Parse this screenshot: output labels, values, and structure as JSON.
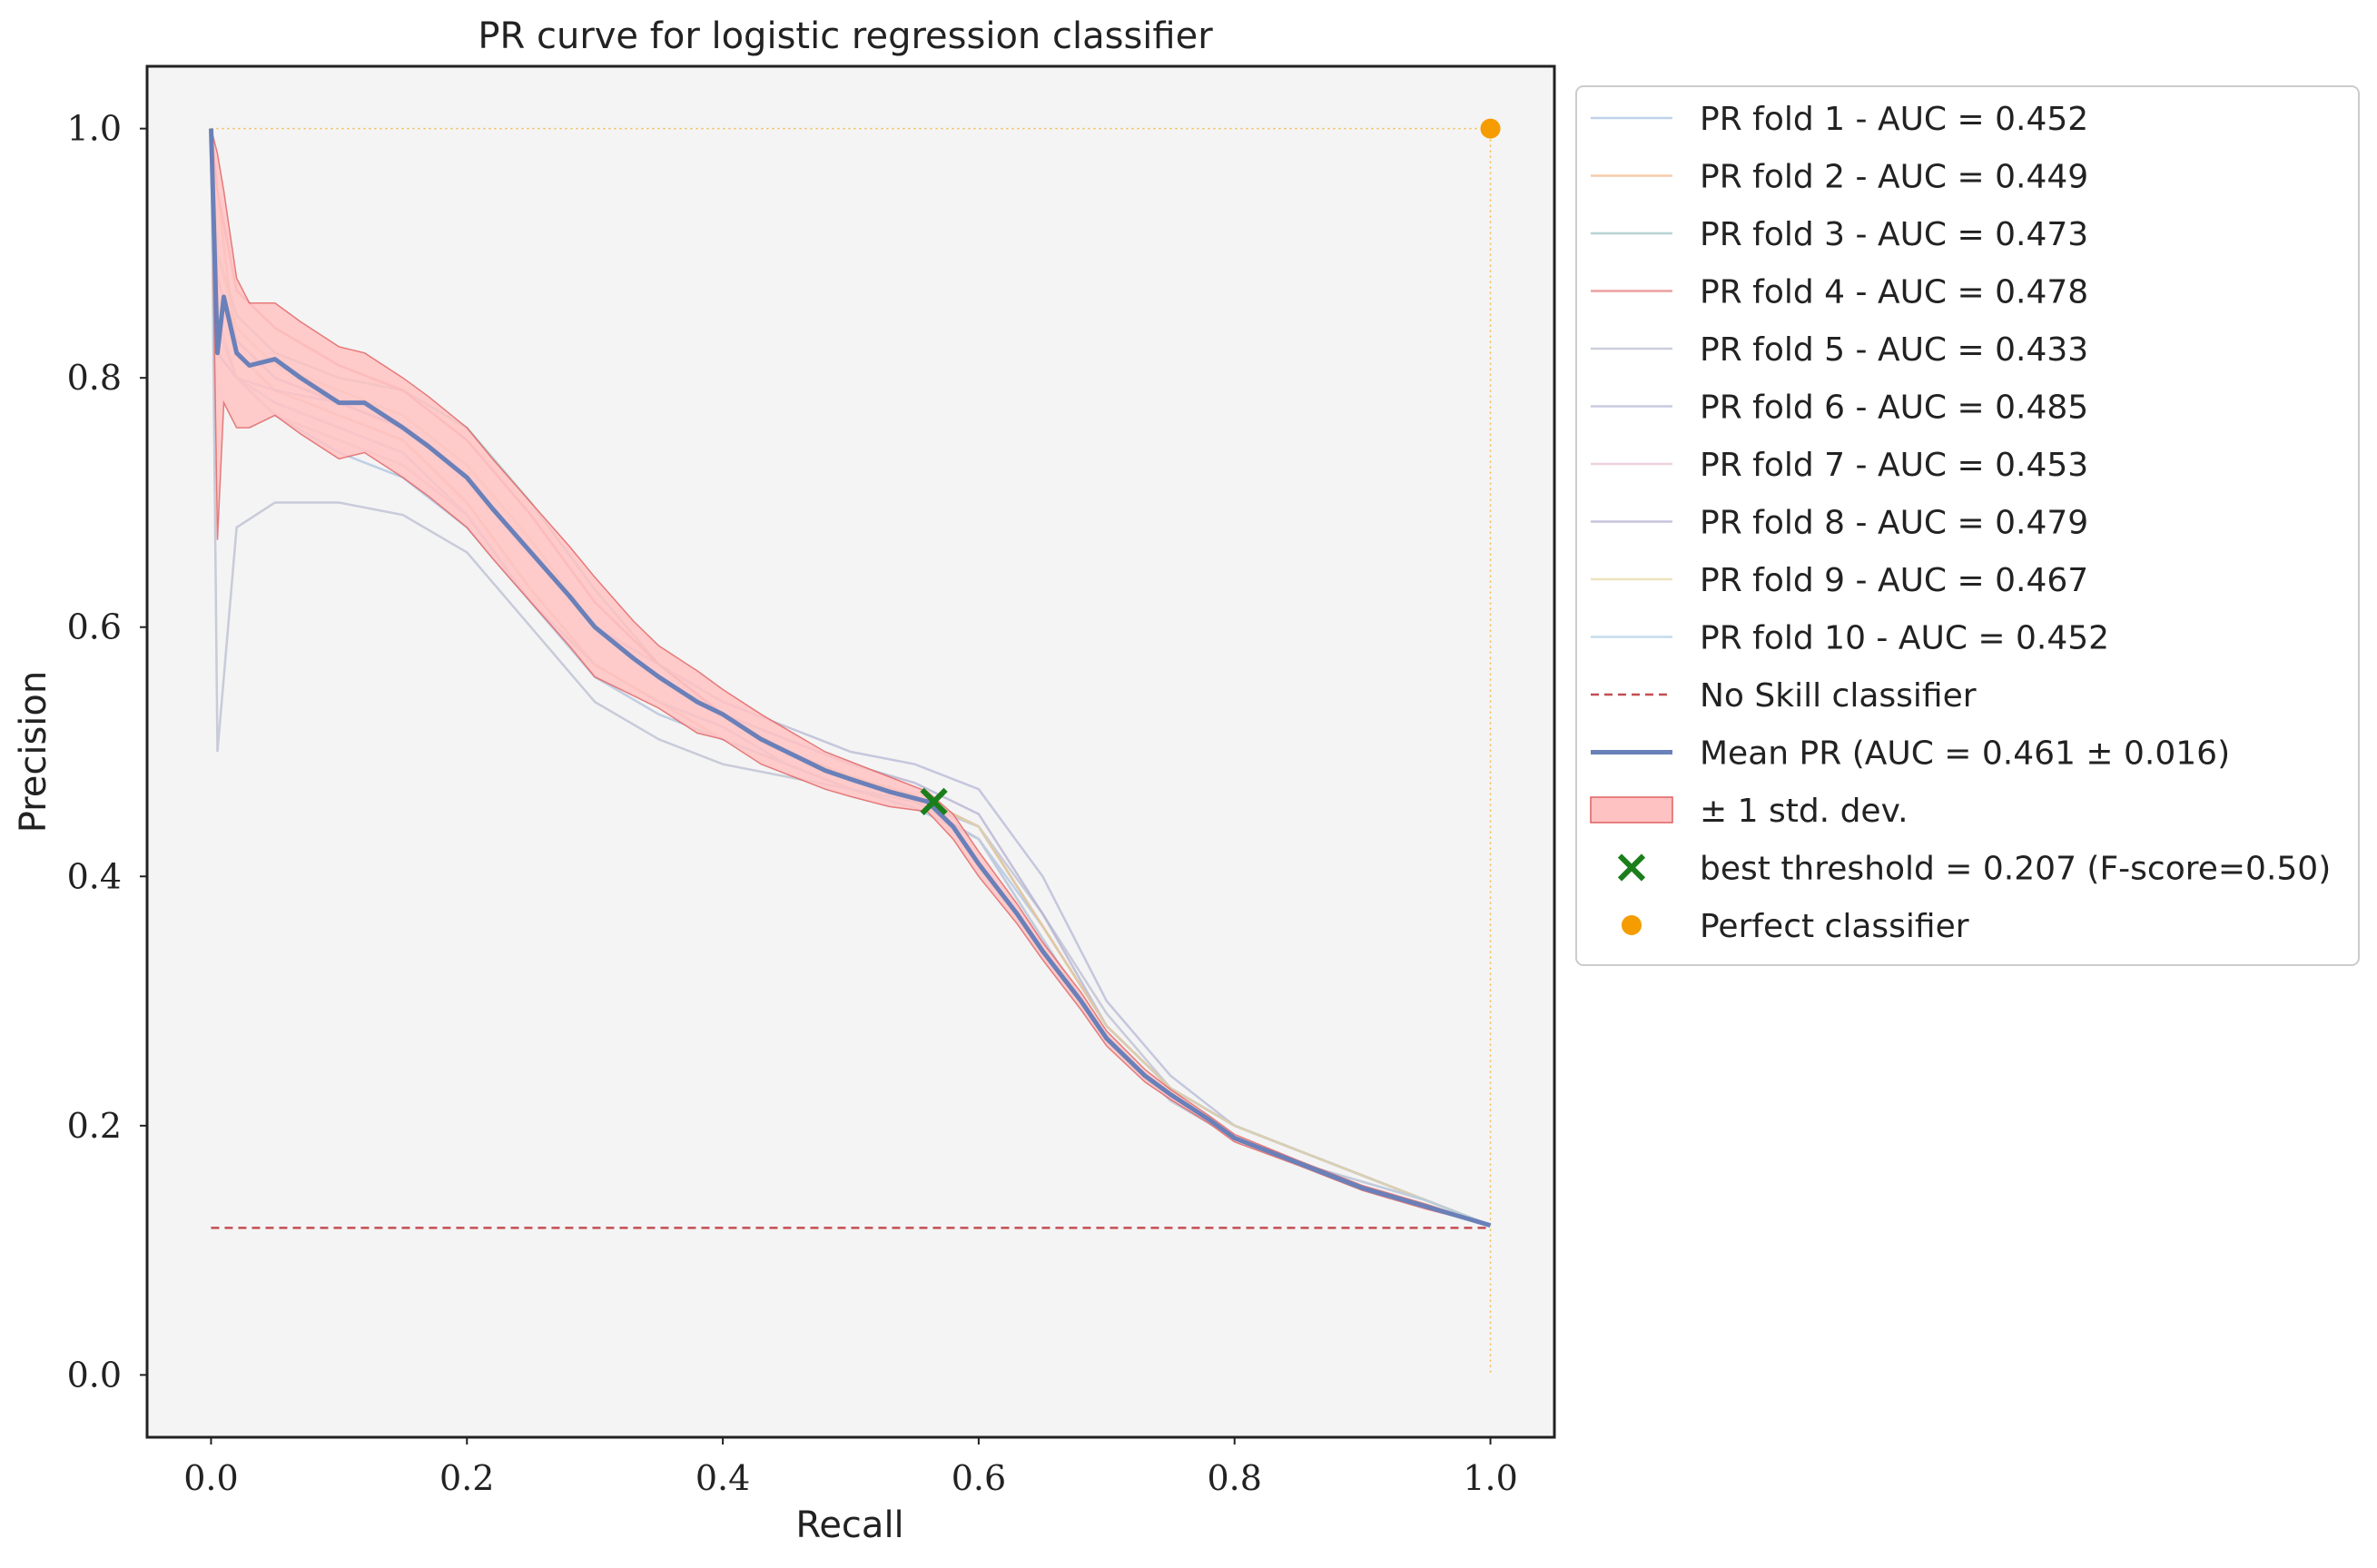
{
  "chart_data": {
    "type": "line",
    "title": "PR curve for logistic regression classifier",
    "xlabel": "Recall",
    "ylabel": "Precision",
    "xlim": [
      -0.05,
      1.05
    ],
    "ylim": [
      -0.05,
      1.05
    ],
    "xticks": [
      "0.0",
      "0.2",
      "0.4",
      "0.6",
      "0.8",
      "1.0"
    ],
    "yticks": [
      "0.0",
      "0.2",
      "0.4",
      "0.6",
      "0.8",
      "1.0"
    ],
    "grid": false,
    "legend_position": "outside-right",
    "colors": {
      "plot_bg": "#f4f4f4",
      "mean": "#6a80b9",
      "band_fill": "#ffc2c2",
      "band_edge": "#e06060",
      "no_skill": "#c44e52",
      "best": "#1a7f1a",
      "perfect": "#f59c00"
    },
    "series": [
      {
        "name": "PR fold 1 - AUC = 0.452",
        "color": "#a9c4e3",
        "x": [
          0.0,
          0.005,
          0.02,
          0.05,
          0.1,
          0.15,
          0.2,
          0.25,
          0.3,
          0.35,
          0.4,
          0.45,
          0.5,
          0.55,
          0.6,
          0.65,
          0.7,
          0.75,
          0.8,
          0.85,
          0.9,
          0.95,
          1.0
        ],
        "y": [
          1.0,
          0.82,
          0.8,
          0.77,
          0.74,
          0.72,
          0.68,
          0.62,
          0.57,
          0.54,
          0.52,
          0.49,
          0.47,
          0.455,
          0.43,
          0.36,
          0.28,
          0.23,
          0.2,
          0.18,
          0.16,
          0.14,
          0.12
        ]
      },
      {
        "name": "PR fold 2 - AUC = 0.449",
        "color": "#f2b98f",
        "x": [
          0.0,
          0.005,
          0.02,
          0.05,
          0.1,
          0.15,
          0.2,
          0.25,
          0.3,
          0.35,
          0.4,
          0.45,
          0.5,
          0.55,
          0.6,
          0.65,
          0.7,
          0.75,
          0.8,
          0.85,
          0.9,
          0.95,
          1.0
        ],
        "y": [
          1.0,
          0.95,
          0.82,
          0.79,
          0.77,
          0.75,
          0.7,
          0.63,
          0.57,
          0.54,
          0.51,
          0.49,
          0.47,
          0.46,
          0.43,
          0.35,
          0.27,
          0.22,
          0.19,
          0.17,
          0.155,
          0.14,
          0.12
        ]
      },
      {
        "name": "PR fold 3 - AUC = 0.473",
        "color": "#9fc6c2",
        "x": [
          0.0,
          0.005,
          0.02,
          0.05,
          0.1,
          0.15,
          0.2,
          0.25,
          0.3,
          0.35,
          0.4,
          0.45,
          0.5,
          0.55,
          0.6,
          0.65,
          0.7,
          0.75,
          0.8,
          0.85,
          0.9,
          0.95,
          1.0
        ],
        "y": [
          1.0,
          0.9,
          0.85,
          0.82,
          0.8,
          0.79,
          0.76,
          0.7,
          0.63,
          0.57,
          0.53,
          0.5,
          0.48,
          0.465,
          0.44,
          0.36,
          0.28,
          0.23,
          0.2,
          0.18,
          0.16,
          0.14,
          0.12
        ]
      },
      {
        "name": "PR fold 4 - AUC = 0.478",
        "color": "#e68080",
        "x": [
          0.0,
          0.005,
          0.02,
          0.05,
          0.1,
          0.15,
          0.2,
          0.25,
          0.3,
          0.35,
          0.4,
          0.45,
          0.5,
          0.55,
          0.6,
          0.65,
          0.7,
          0.75,
          0.8,
          0.85,
          0.9,
          0.95,
          1.0
        ],
        "y": [
          1.0,
          0.95,
          0.87,
          0.84,
          0.81,
          0.79,
          0.75,
          0.69,
          0.62,
          0.57,
          0.53,
          0.5,
          0.48,
          0.465,
          0.44,
          0.36,
          0.28,
          0.23,
          0.2,
          0.18,
          0.16,
          0.14,
          0.12
        ]
      },
      {
        "name": "PR fold 5 - AUC = 0.433",
        "color": "#b9bdd0",
        "x": [
          0.0,
          0.005,
          0.02,
          0.05,
          0.1,
          0.15,
          0.2,
          0.25,
          0.3,
          0.35,
          0.4,
          0.45,
          0.5,
          0.55,
          0.6,
          0.65,
          0.7,
          0.75,
          0.8,
          0.85,
          0.9,
          0.95,
          1.0
        ],
        "y": [
          1.0,
          0.5,
          0.68,
          0.7,
          0.7,
          0.69,
          0.66,
          0.6,
          0.54,
          0.51,
          0.49,
          0.48,
          0.47,
          0.46,
          0.44,
          0.37,
          0.29,
          0.23,
          0.2,
          0.18,
          0.16,
          0.14,
          0.12
        ]
      },
      {
        "name": "PR fold 6 - AUC = 0.485",
        "color": "#b5b8d6",
        "x": [
          0.0,
          0.005,
          0.02,
          0.05,
          0.1,
          0.15,
          0.2,
          0.25,
          0.3,
          0.35,
          0.4,
          0.45,
          0.5,
          0.55,
          0.6,
          0.65,
          0.7,
          0.75,
          0.8,
          0.85,
          0.9,
          0.95,
          1.0
        ],
        "y": [
          1.0,
          0.82,
          0.8,
          0.79,
          0.78,
          0.76,
          0.72,
          0.66,
          0.6,
          0.57,
          0.54,
          0.52,
          0.5,
          0.49,
          0.47,
          0.4,
          0.3,
          0.24,
          0.2,
          0.18,
          0.16,
          0.14,
          0.12
        ]
      },
      {
        "name": "PR fold 7 - AUC = 0.453",
        "color": "#e8c2d5",
        "x": [
          0.0,
          0.005,
          0.02,
          0.05,
          0.1,
          0.15,
          0.2,
          0.25,
          0.3,
          0.35,
          0.4,
          0.45,
          0.5,
          0.55,
          0.6,
          0.65,
          0.7,
          0.75,
          0.8,
          0.85,
          0.9,
          0.95,
          1.0
        ],
        "y": [
          1.0,
          0.85,
          0.8,
          0.77,
          0.75,
          0.73,
          0.69,
          0.62,
          0.56,
          0.53,
          0.51,
          0.49,
          0.47,
          0.46,
          0.43,
          0.35,
          0.27,
          0.22,
          0.19,
          0.17,
          0.155,
          0.14,
          0.12
        ]
      },
      {
        "name": "PR fold 8 - AUC = 0.479",
        "color": "#b3b0d0",
        "x": [
          0.0,
          0.005,
          0.02,
          0.05,
          0.1,
          0.15,
          0.2,
          0.25,
          0.3,
          0.35,
          0.4,
          0.45,
          0.5,
          0.55,
          0.6,
          0.65,
          0.7,
          0.75,
          0.8,
          0.85,
          0.9,
          0.95,
          1.0
        ],
        "y": [
          1.0,
          0.88,
          0.83,
          0.8,
          0.78,
          0.76,
          0.72,
          0.66,
          0.6,
          0.56,
          0.53,
          0.51,
          0.49,
          0.475,
          0.45,
          0.37,
          0.28,
          0.23,
          0.2,
          0.18,
          0.16,
          0.14,
          0.12
        ]
      },
      {
        "name": "PR fold 9 - AUC = 0.467",
        "color": "#e6d9a8",
        "x": [
          0.0,
          0.005,
          0.02,
          0.05,
          0.1,
          0.15,
          0.2,
          0.25,
          0.3,
          0.35,
          0.4,
          0.45,
          0.5,
          0.55,
          0.6,
          0.65,
          0.7,
          0.75,
          0.8,
          0.85,
          0.9,
          0.95,
          1.0
        ],
        "y": [
          1.0,
          0.9,
          0.84,
          0.81,
          0.79,
          0.77,
          0.73,
          0.67,
          0.6,
          0.56,
          0.53,
          0.5,
          0.48,
          0.465,
          0.44,
          0.36,
          0.28,
          0.23,
          0.2,
          0.18,
          0.16,
          0.14,
          0.12
        ]
      },
      {
        "name": "PR fold 10 - AUC = 0.452",
        "color": "#b2cfe4",
        "x": [
          0.0,
          0.005,
          0.02,
          0.05,
          0.1,
          0.15,
          0.2,
          0.25,
          0.3,
          0.35,
          0.4,
          0.45,
          0.5,
          0.55,
          0.6,
          0.65,
          0.7,
          0.75,
          0.8,
          0.85,
          0.9,
          0.95,
          1.0
        ],
        "y": [
          1.0,
          0.84,
          0.8,
          0.78,
          0.76,
          0.74,
          0.69,
          0.62,
          0.56,
          0.53,
          0.51,
          0.49,
          0.47,
          0.46,
          0.43,
          0.35,
          0.27,
          0.22,
          0.19,
          0.17,
          0.155,
          0.14,
          0.12
        ]
      }
    ],
    "no_skill": {
      "name": "No Skill classifier",
      "x": [
        0.0,
        1.0
      ],
      "y": [
        0.118,
        0.118
      ]
    },
    "mean": {
      "name": "Mean PR (AUC = 0.461 ± 0.016)",
      "x": [
        0.0,
        0.005,
        0.01,
        0.02,
        0.03,
        0.05,
        0.07,
        0.1,
        0.12,
        0.15,
        0.17,
        0.2,
        0.22,
        0.25,
        0.28,
        0.3,
        0.33,
        0.35,
        0.38,
        0.4,
        0.43,
        0.45,
        0.48,
        0.5,
        0.53,
        0.56,
        0.58,
        0.6,
        0.63,
        0.65,
        0.68,
        0.7,
        0.73,
        0.75,
        0.78,
        0.8,
        0.85,
        0.9,
        0.95,
        1.0
      ],
      "y": [
        1.0,
        0.82,
        0.865,
        0.82,
        0.81,
        0.815,
        0.8,
        0.78,
        0.78,
        0.76,
        0.745,
        0.72,
        0.695,
        0.66,
        0.625,
        0.6,
        0.575,
        0.56,
        0.54,
        0.53,
        0.51,
        0.5,
        0.485,
        0.478,
        0.468,
        0.46,
        0.44,
        0.41,
        0.37,
        0.34,
        0.3,
        0.27,
        0.24,
        0.225,
        0.205,
        0.19,
        0.17,
        0.15,
        0.135,
        0.12
      ]
    },
    "band": {
      "name": "± 1 std. dev.",
      "x": [
        0.0,
        0.005,
        0.01,
        0.02,
        0.03,
        0.05,
        0.07,
        0.1,
        0.12,
        0.15,
        0.17,
        0.2,
        0.22,
        0.25,
        0.28,
        0.3,
        0.33,
        0.35,
        0.38,
        0.4,
        0.43,
        0.45,
        0.48,
        0.5,
        0.53,
        0.56,
        0.58,
        0.6,
        0.63,
        0.65,
        0.68,
        0.7,
        0.73,
        0.75,
        0.78,
        0.8,
        0.85,
        0.9,
        0.95,
        1.0
      ],
      "upper": [
        1.0,
        0.98,
        0.95,
        0.88,
        0.86,
        0.86,
        0.845,
        0.825,
        0.82,
        0.8,
        0.785,
        0.76,
        0.735,
        0.7,
        0.665,
        0.64,
        0.605,
        0.585,
        0.565,
        0.55,
        0.53,
        0.518,
        0.5,
        0.492,
        0.48,
        0.468,
        0.45,
        0.42,
        0.378,
        0.347,
        0.307,
        0.276,
        0.245,
        0.229,
        0.208,
        0.193,
        0.172,
        0.152,
        0.137,
        0.12
      ],
      "lower": [
        1.0,
        0.67,
        0.78,
        0.76,
        0.76,
        0.77,
        0.755,
        0.735,
        0.74,
        0.72,
        0.705,
        0.68,
        0.655,
        0.62,
        0.585,
        0.56,
        0.545,
        0.535,
        0.515,
        0.51,
        0.49,
        0.482,
        0.47,
        0.464,
        0.456,
        0.452,
        0.43,
        0.4,
        0.362,
        0.333,
        0.293,
        0.264,
        0.235,
        0.221,
        0.202,
        0.187,
        0.168,
        0.148,
        0.133,
        0.12
      ]
    },
    "best_threshold": {
      "name": "best threshold = 0.207 (F-score=0.50)",
      "x": 0.565,
      "y": 0.46
    },
    "perfect": {
      "name": "Perfect classifier",
      "x": 1.0,
      "y": 1.0
    }
  }
}
